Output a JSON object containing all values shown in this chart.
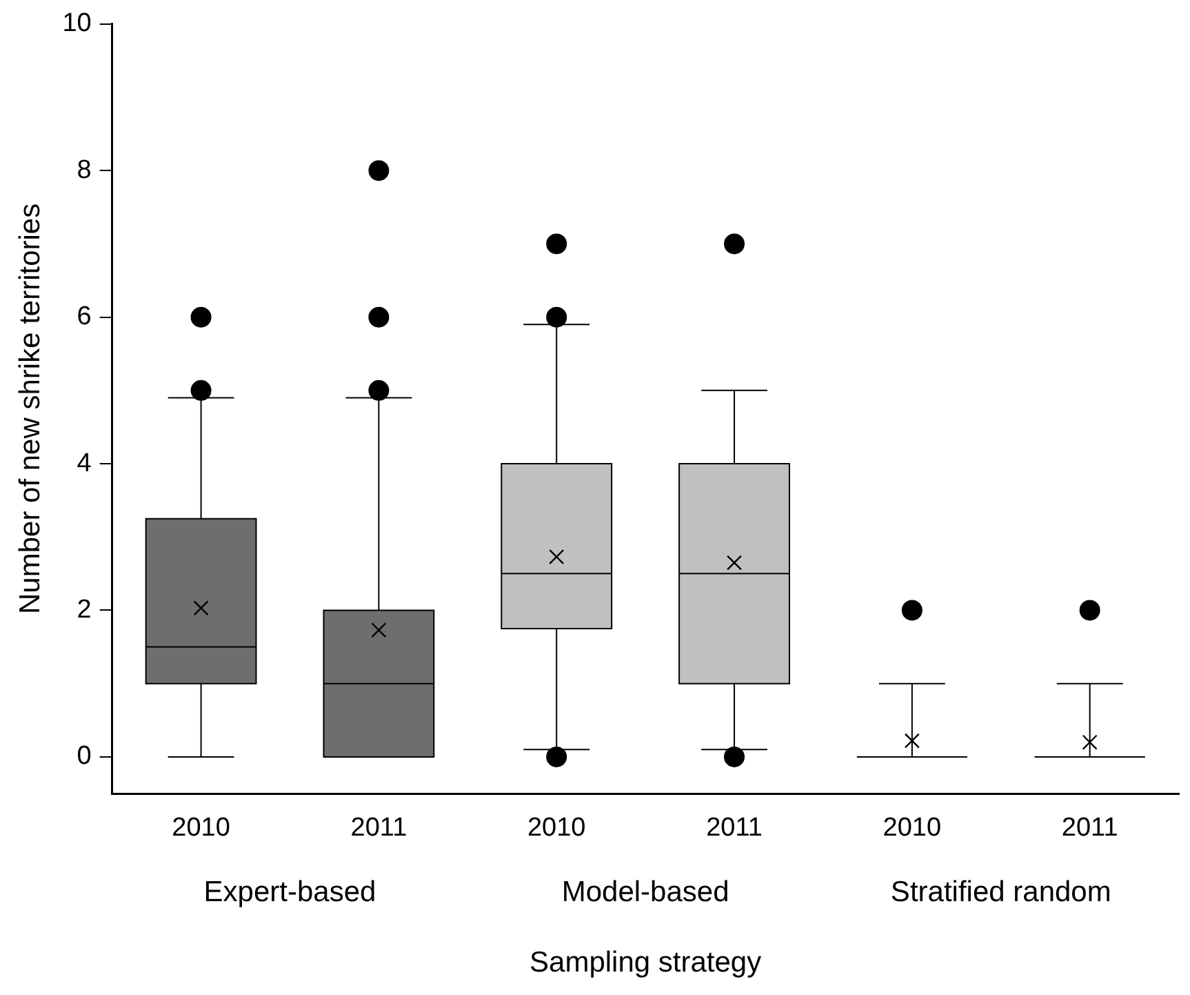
{
  "chart_data": {
    "type": "box",
    "xlabel": "Sampling strategy",
    "ylabel": "Number of new shrike territories",
    "categories": [
      "2010",
      "2011",
      "2010",
      "2011",
      "2010",
      "2011"
    ],
    "boxes": [
      {
        "low": 0,
        "q1": 1,
        "median": 1.5,
        "q3": 3.25,
        "high": 4.9,
        "mean": 2.03,
        "outliers": [
          5,
          6
        ]
      },
      {
        "low": 0,
        "q1": 0,
        "median": 1,
        "q3": 2,
        "high": 4.9,
        "mean": 1.73,
        "outliers": [
          5,
          6,
          8
        ]
      },
      {
        "low": 0.1,
        "q1": 1.75,
        "median": 2.5,
        "q3": 4,
        "high": 5.9,
        "mean": 2.73,
        "outliers": [
          0,
          6,
          7
        ]
      },
      {
        "low": 0.1,
        "q1": 1,
        "median": 2.5,
        "q3": 4,
        "high": 5,
        "mean": 2.65,
        "outliers": [
          0,
          7
        ]
      },
      {
        "low": 0,
        "q1": 0,
        "median": 0,
        "q3": 0,
        "high": 1,
        "mean": 0.22,
        "outliers": [
          2
        ]
      },
      {
        "low": 0,
        "q1": 0,
        "median": 0,
        "q3": 0,
        "high": 1,
        "mean": 0.2,
        "outliers": [
          2
        ]
      }
    ],
    "colors": [
      "#6e6e6e",
      "#6e6e6e",
      "#c0c0c0",
      "#c0c0c0",
      "#000000",
      "#000000"
    ],
    "annotations": [
      "Expert-based",
      "Model-based",
      "Stratified random"
    ],
    "ylim": [
      -0.5,
      10
    ],
    "yticks": [
      0,
      2,
      4,
      6,
      8,
      10
    ],
    "grid": false,
    "legend": false,
    "marker": "circle"
  }
}
